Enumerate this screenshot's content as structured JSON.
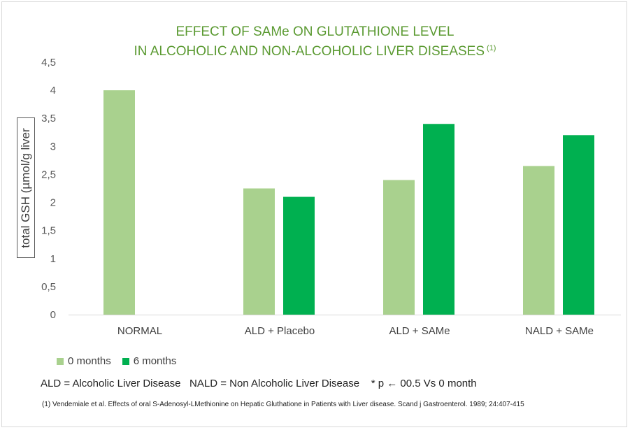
{
  "title_line1": "EFFECT OF SAMe ON GLUTATHIONE LEVEL",
  "title_line2": "IN ALCOHOLIC AND NON-ALCOHOLIC LIVER DISEASES",
  "title_ref": "(1)",
  "colors": {
    "series0": "#a9d18e",
    "series1": "#00b050",
    "title": "#5b9a32"
  },
  "legend": [
    {
      "label": "0 months"
    },
    {
      "label": "6 months"
    }
  ],
  "abbreviations_note": "ALD = Alcoholic Liver Disease   NALD = Non Alcoholic Liver Disease    * p ← 00.5 Vs 0 month",
  "reference_note": "(1) Vendemiale et al. Effects of oral S-Adenosyl-LMethionine on Hepatic Gluthatione in Patients with Liver disease. Scand j Gastroenterol. 1989; 24:407-415",
  "chart_data": {
    "type": "bar",
    "title": "EFFECT OF SAMe ON GLUTATHIONE LEVEL IN ALCOHOLIC AND NON-ALCOHOLIC LIVER DISEASES (1)",
    "xlabel": "",
    "ylabel": "total GSH (µmol/g liver",
    "categories": [
      "NORMAL",
      "ALD + Placebo",
      "ALD + SAMe",
      "NALD + SAMe"
    ],
    "series": [
      {
        "name": "0 months",
        "values": [
          4.0,
          2.25,
          2.4,
          2.65
        ]
      },
      {
        "name": "6 months",
        "values": [
          null,
          2.1,
          3.4,
          3.2
        ]
      }
    ],
    "ylim": [
      0,
      4.5
    ],
    "yticks": [
      "0",
      "0,5",
      "1",
      "1,5",
      "2",
      "2,5",
      "3",
      "3,5",
      "4",
      "4,5"
    ],
    "grid": false,
    "legend_position": "bottom-left"
  }
}
